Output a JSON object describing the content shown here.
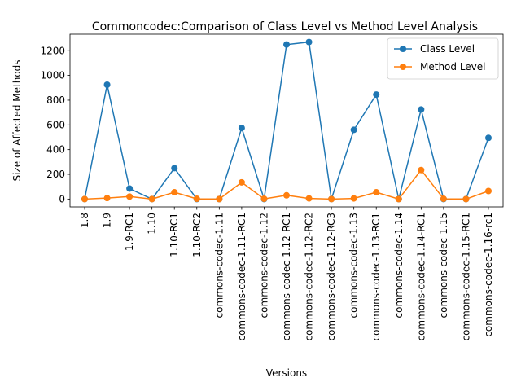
{
  "chart_data": {
    "type": "line",
    "title": "Commoncodec:Comparison of Class Level vs Method Level Analysis",
    "xlabel": "Versions",
    "ylabel": "Size of Affected Methods",
    "categories": [
      "1.8",
      "1.9",
      "1.9-RC1",
      "1.10",
      "1.10-RC1",
      "1.10-RC2",
      "commons-codec-1.11",
      "commons-codec-1.11-RC1",
      "commons-codec-1.12",
      "commons-codec-1.12-RC1",
      "commons-codec-1.12-RC2",
      "commons-codec-1.12-RC3",
      "commons-codec-1.13",
      "commons-codec-1.13-RC1",
      "commons-codec-1.14",
      "commons-codec-1.14-RC1",
      "commons-codec-1.15",
      "commons-codec-1.15-RC1",
      "commons-codec-1.16-rc1"
    ],
    "series": [
      {
        "name": "Class Level",
        "color": "#1f77b4",
        "values": [
          0,
          925,
          85,
          0,
          250,
          0,
          0,
          575,
          0,
          1250,
          1270,
          0,
          560,
          845,
          0,
          725,
          0,
          0,
          495
        ]
      },
      {
        "name": "Method Level",
        "color": "#ff7f0e",
        "values": [
          0,
          8,
          20,
          0,
          55,
          2,
          0,
          135,
          2,
          30,
          5,
          0,
          5,
          55,
          0,
          235,
          2,
          0,
          65
        ]
      }
    ],
    "yticks": [
      0,
      200,
      400,
      600,
      800,
      1000,
      1200
    ],
    "ylim": [
      -63.5,
      1333.5
    ],
    "legend_position": "upper right",
    "grid": false
  }
}
